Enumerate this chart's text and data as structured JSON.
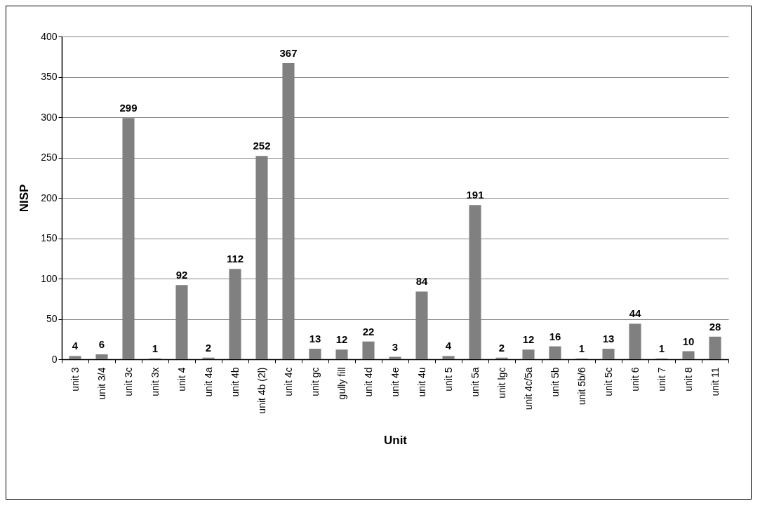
{
  "chart_data": {
    "type": "bar",
    "xlabel": "Unit",
    "ylabel": "NISP",
    "categories": [
      "unit 3",
      "unit 3/4",
      "unit 3c",
      "unit 3x",
      "unit 4",
      "unit 4a",
      "unit 4b",
      "unit 4b (2l)",
      "unit 4c",
      "unit gc",
      "gully fill",
      "unit 4d",
      "unit 4e",
      "unit 4u",
      "unit 5",
      "unit 5a",
      "unit lgc",
      "unit 4c/5a",
      "unit 5b",
      "unit 5b/6",
      "unit 5c",
      "unit 6",
      "unit 7",
      "unit 8",
      "unit 11"
    ],
    "values": [
      4,
      6,
      299,
      1,
      92,
      2,
      112,
      252,
      367,
      13,
      12,
      22,
      3,
      84,
      4,
      191,
      2,
      12,
      16,
      1,
      13,
      44,
      1,
      10,
      28
    ],
    "color": "#808080",
    "ylim": [
      0,
      400
    ],
    "yticks": [
      0,
      50,
      100,
      150,
      200,
      250,
      300,
      350,
      400
    ],
    "grid": "y",
    "data_labels": true
  }
}
